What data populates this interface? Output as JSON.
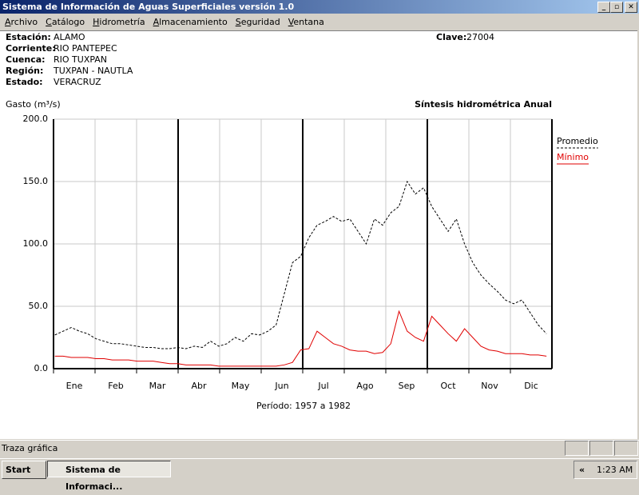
{
  "window": {
    "title": "Sistema de Información de Aguas Superficiales  versión 1.0"
  },
  "menu": [
    "Archivo",
    "Catálogo",
    "Hidrometría",
    "Almacenamiento",
    "Seguridad",
    "Ventana"
  ],
  "station": {
    "fields": [
      {
        "label": "Estación:",
        "value": "ALAMO"
      },
      {
        "label": "Corriente:",
        "value": "RIO PANTEPEC"
      },
      {
        "label": "Cuenca:",
        "value": "RIO TUXPAN"
      },
      {
        "label": "Región:",
        "value": "TUXPAN - NAUTLA"
      },
      {
        "label": "Estado:",
        "value": "VERACRUZ"
      }
    ],
    "clave": {
      "label": "Clave:",
      "value": "27004"
    }
  },
  "chart_data": {
    "type": "line",
    "title": "Síntesis hidrométrica   Anual",
    "y_label": "Gasto (m³/s)",
    "x_label": "Período:  1957 a 1982",
    "categories": [
      "Ene",
      "Feb",
      "Mar",
      "Abr",
      "May",
      "Jun",
      "Jul",
      "Ago",
      "Sep",
      "Oct",
      "Nov",
      "Dic"
    ],
    "xlim": [
      0,
      365
    ],
    "x": [
      1,
      7,
      13,
      19,
      25,
      31,
      37,
      43,
      49,
      55,
      61,
      67,
      73,
      79,
      85,
      91,
      97,
      103,
      109,
      115,
      121,
      127,
      133,
      139,
      145,
      151,
      157,
      163,
      169,
      175,
      181,
      187,
      193,
      199,
      205,
      211,
      217,
      223,
      229,
      235,
      241,
      247,
      253,
      259,
      265,
      271,
      277,
      283,
      289,
      295,
      301,
      307,
      313,
      319,
      325,
      331,
      337,
      343,
      349,
      355,
      361
    ],
    "series": [
      {
        "name": "Promedio",
        "color": "#000000",
        "line_style": "dashed",
        "values": [
          27,
          30,
          33,
          30,
          28,
          24,
          22,
          20,
          20,
          19,
          18,
          17,
          17,
          16,
          16,
          17,
          16,
          18,
          17,
          22,
          18,
          20,
          25,
          22,
          28,
          27,
          30,
          35,
          60,
          85,
          90,
          105,
          115,
          118,
          122,
          118,
          120,
          110,
          100,
          120,
          115,
          125,
          130,
          150,
          140,
          145,
          130,
          120,
          110,
          120,
          100,
          85,
          75,
          68,
          62,
          55,
          52,
          55,
          45,
          35,
          28
        ]
      },
      {
        "name": "Mínimo",
        "color": "#e00000",
        "line_style": "solid",
        "values": [
          10,
          10,
          9,
          9,
          9,
          8,
          8,
          7,
          7,
          7,
          6,
          6,
          6,
          5,
          4,
          4,
          3,
          3,
          3,
          3,
          2,
          2,
          2,
          2,
          2,
          2,
          2,
          2,
          3,
          5,
          15,
          16,
          30,
          25,
          20,
          18,
          15,
          14,
          14,
          12,
          13,
          20,
          46,
          30,
          25,
          22,
          42,
          35,
          28,
          22,
          32,
          25,
          18,
          15,
          14,
          12,
          12,
          12,
          11,
          11,
          10
        ]
      }
    ],
    "ylim": [
      0,
      200
    ],
    "yticks": [
      {
        "value": 0,
        "label": "0.0"
      },
      {
        "value": 50,
        "label": "50.0"
      },
      {
        "value": 100,
        "label": "100.0"
      },
      {
        "value": 150,
        "label": "150.0"
      },
      {
        "value": 200,
        "label": "200.0"
      }
    ],
    "grid": true
  },
  "status_bar": {
    "text": "Traza gráfica"
  },
  "taskbar": {
    "start": "Start",
    "task": "Sistema de Informaci...",
    "chevron": "«",
    "clock": "1:23 AM"
  }
}
